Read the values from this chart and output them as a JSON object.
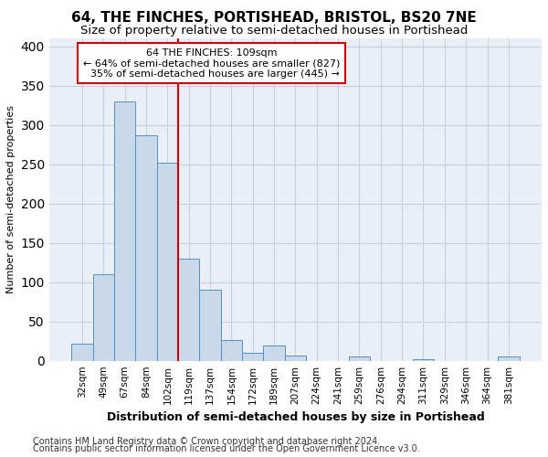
{
  "title": "64, THE FINCHES, PORTISHEAD, BRISTOL, BS20 7NE",
  "subtitle": "Size of property relative to semi-detached houses in Portishead",
  "xlabel": "Distribution of semi-detached houses by size in Portishead",
  "ylabel": "Number of semi-detached properties",
  "categories": [
    "32sqm",
    "49sqm",
    "67sqm",
    "84sqm",
    "102sqm",
    "119sqm",
    "137sqm",
    "154sqm",
    "172sqm",
    "189sqm",
    "207sqm",
    "224sqm",
    "241sqm",
    "259sqm",
    "276sqm",
    "294sqm",
    "311sqm",
    "329sqm",
    "346sqm",
    "364sqm",
    "381sqm"
  ],
  "values": [
    22,
    110,
    330,
    287,
    252,
    130,
    90,
    27,
    10,
    20,
    7,
    0,
    0,
    5,
    0,
    0,
    2,
    0,
    0,
    0,
    5
  ],
  "bar_color": "#c9d9ec",
  "bar_edge_color": "#5a8fc0",
  "grid_color": "#c8d0de",
  "background_color": "#eaeff7",
  "property_label": "64 THE FINCHES: 109sqm",
  "pct_smaller": 64,
  "count_smaller": 827,
  "pct_larger": 35,
  "count_larger": 445,
  "vline_x": 4.5,
  "annotation_box_color": "#ffffff",
  "annotation_box_edge": "#cc0000",
  "vline_color": "#cc0000",
  "footer1": "Contains HM Land Registry data © Crown copyright and database right 2024.",
  "footer2": "Contains public sector information licensed under the Open Government Licence v3.0.",
  "ylim": [
    0,
    410
  ],
  "title_fontsize": 11,
  "subtitle_fontsize": 9.5,
  "xlabel_fontsize": 9,
  "ylabel_fontsize": 8,
  "tick_fontsize": 7.5,
  "annot_fontsize": 8,
  "footer_fontsize": 7
}
